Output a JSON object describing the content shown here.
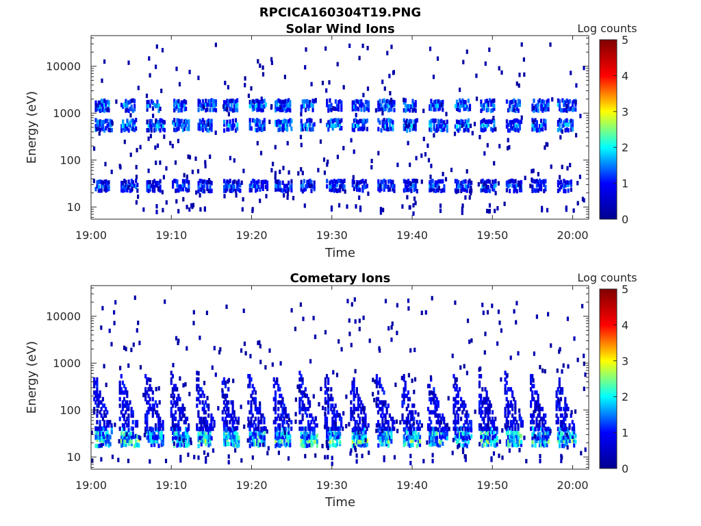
{
  "figure_title": "RPCICA160304T19.PNG",
  "colormap": {
    "name": "jet",
    "stops": [
      "#00008f",
      "#0000ff",
      "#00ffff",
      "#ffff00",
      "#ff0000",
      "#800000"
    ]
  },
  "chart_data": [
    {
      "type": "heatmap",
      "title": "Solar Wind Ions",
      "xlabel": "Time",
      "ylabel": "Energy (eV)",
      "xlim": [
        "19:00",
        "20:02"
      ],
      "ylim": [
        5.5,
        45000
      ],
      "yscale": "log",
      "xticks": [
        "19:00",
        "19:10",
        "19:20",
        "19:30",
        "19:40",
        "19:50",
        "20:00"
      ],
      "yticks": [
        "10",
        "100",
        "1000",
        "10000"
      ],
      "colorbar": {
        "label": "Log counts",
        "range": [
          0,
          5
        ],
        "ticks": [
          "0",
          "1",
          "2",
          "3",
          "4",
          "5"
        ]
      },
      "sweep_period_min": 3.2,
      "sweep_starts_min": [
        0.0,
        3.2,
        6.4,
        9.6,
        12.8,
        16.0,
        19.2,
        22.4,
        25.6,
        28.8,
        32.0,
        35.2,
        38.4,
        41.6,
        44.8,
        48.0,
        51.2,
        54.4,
        57.6
      ],
      "bands": [
        {
          "energy_eV": 28,
          "typical_log_counts": 1.3
        },
        {
          "energy_eV": 550,
          "typical_log_counts": 1.6
        },
        {
          "energy_eV": 1450,
          "typical_log_counts": 1.5
        }
      ],
      "scatter_energy_range_eV": [
        8,
        30000
      ],
      "scatter_log_counts": 0.2
    },
    {
      "type": "heatmap",
      "title": "Cometary Ions",
      "xlabel": "Time",
      "ylabel": "Energy (eV)",
      "xlim": [
        "19:00",
        "20:02"
      ],
      "ylim": [
        5.5,
        45000
      ],
      "yscale": "log",
      "xticks": [
        "19:00",
        "19:10",
        "19:20",
        "19:30",
        "19:40",
        "19:50",
        "20:00"
      ],
      "yticks": [
        "10",
        "100",
        "1000",
        "10000"
      ],
      "colorbar": {
        "label": "Log counts",
        "range": [
          0,
          5
        ],
        "ticks": [
          "0",
          "1",
          "2",
          "3",
          "4",
          "5"
        ]
      },
      "sweep_period_min": 3.2,
      "sweep_starts_min": [
        0.0,
        3.2,
        6.4,
        9.6,
        12.8,
        16.0,
        19.2,
        22.4,
        25.6,
        28.8,
        32.0,
        35.2,
        38.4,
        41.6,
        44.8,
        48.0,
        51.2,
        54.4,
        57.6
      ],
      "bands": [
        {
          "energy_eV": 22,
          "typical_log_counts": 2.2
        },
        {
          "energy_eV": 32,
          "typical_log_counts": 1.9
        }
      ],
      "dispersed_energy_range_eV": [
        40,
        700
      ],
      "dispersed_log_counts": 0.8,
      "scatter_energy_range_eV": [
        8,
        25000
      ],
      "scatter_log_counts": 0.2
    }
  ]
}
